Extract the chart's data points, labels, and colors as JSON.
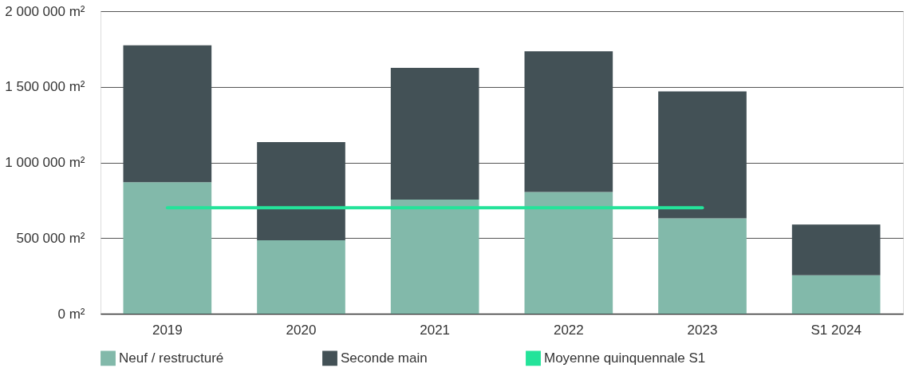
{
  "chart_data": {
    "type": "bar",
    "stacked": true,
    "categories": [
      "2019",
      "2020",
      "2021",
      "2022",
      "2023",
      "S1 2024"
    ],
    "series": [
      {
        "name": "Neuf / restructuré",
        "color": "#82b9aa",
        "values": [
          870000,
          485000,
          755000,
          805000,
          630000,
          255000
        ]
      },
      {
        "name": "Seconde main",
        "color": "#435156",
        "values": [
          905000,
          650000,
          870000,
          930000,
          840000,
          335000
        ]
      },
      {
        "name": "Moyenne quinquennale S1",
        "type": "line",
        "color": "#24e39a",
        "values": [
          700000,
          700000,
          700000,
          700000,
          700000,
          null
        ]
      }
    ],
    "ylim": [
      0,
      2000000
    ],
    "yticks": [
      {
        "value": 0,
        "label": "0 m²"
      },
      {
        "value": 500000,
        "label": "500 000 m²"
      },
      {
        "value": 1000000,
        "label": "1 000 000 m²"
      },
      {
        "value": 1500000,
        "label": "1 500 000 m²"
      },
      {
        "value": 2000000,
        "label": "2 000 000 m²"
      }
    ],
    "grid": "y",
    "legend": "bottom"
  }
}
